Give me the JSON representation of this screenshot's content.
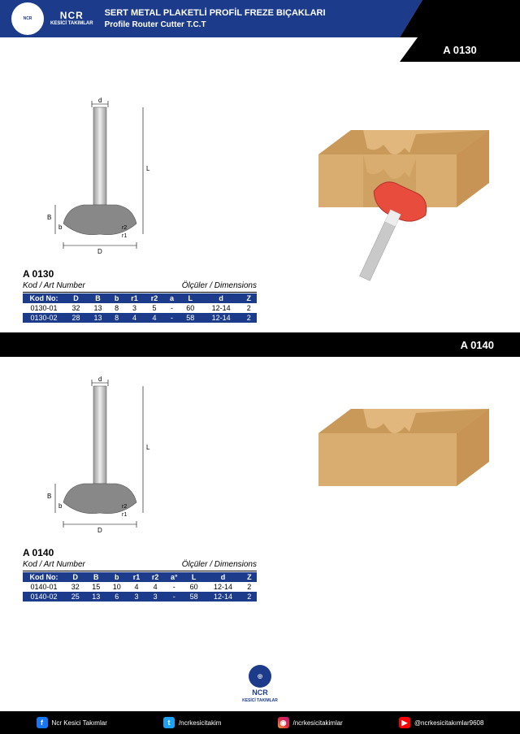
{
  "brand": {
    "name": "NCR",
    "sub": "KESİCİ TAKIMLAR"
  },
  "header": {
    "title_tr": "SERT METAL PLAKETLİ PROFİL FREZE BIÇAKLARI",
    "title_en": "Profile Router Cutter T.C.T"
  },
  "colors": {
    "brand_blue": "#1c3b8a",
    "black": "#000000",
    "wood_light": "#e1b77d",
    "wood_dark": "#c89456",
    "cutter_red": "#e84c3d",
    "steel": "#bfbfbf"
  },
  "products": [
    {
      "code": "A 0130",
      "label_kod": "Kod / Art Number",
      "label_dim": "Ölçüler / Dimensions",
      "diagram_labels": {
        "d": "d",
        "L": "L",
        "B": "B",
        "b": "b",
        "r1": "r1",
        "r2": "r2",
        "D": "D"
      },
      "columns": [
        "Kod No:",
        "D",
        "B",
        "b",
        "r1",
        "r2",
        "a",
        "L",
        "d",
        "Z"
      ],
      "rows": [
        [
          "0130-01",
          "32",
          "13",
          "8",
          "3",
          "5",
          "-",
          "60",
          "12-14",
          "2"
        ],
        [
          "0130-02",
          "28",
          "13",
          "8",
          "4",
          "4",
          "-",
          "58",
          "12-14",
          "2"
        ]
      ],
      "show_cutter": true
    },
    {
      "code": "A 0140",
      "label_kod": "Kod / Art Number",
      "label_dim": "Ölçüler / Dimensions",
      "diagram_labels": {
        "d": "d",
        "L": "L",
        "B": "B",
        "b": "b",
        "r1": "r1",
        "r2": "r2",
        "D": "D"
      },
      "columns": [
        "Kod No:",
        "D",
        "B",
        "b",
        "r1",
        "r2",
        "a°",
        "L",
        "d",
        "Z"
      ],
      "rows": [
        [
          "0140-01",
          "32",
          "15",
          "10",
          "4",
          "4",
          "-",
          "60",
          "12-14",
          "2"
        ],
        [
          "0140-02",
          "25",
          "13",
          "6",
          "3",
          "3",
          "-",
          "58",
          "12-14",
          "2"
        ]
      ],
      "show_cutter": false
    }
  ],
  "social": {
    "facebook": "Ncr Kesici Takımlar",
    "twitter": "/ncrkesicitakim",
    "instagram": "/ncrkesicitakimlar",
    "youtube": "@ncrkesicitakımlar9608"
  }
}
